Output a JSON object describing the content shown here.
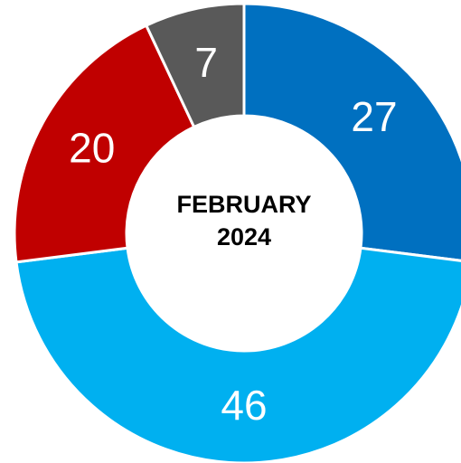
{
  "chart_data": {
    "type": "donut",
    "title": "FEBRUARY 2024",
    "values": [
      27,
      46,
      20,
      7
    ],
    "colors": [
      "#0070c0",
      "#00b0f0",
      "#c00000",
      "#595959"
    ]
  }
}
